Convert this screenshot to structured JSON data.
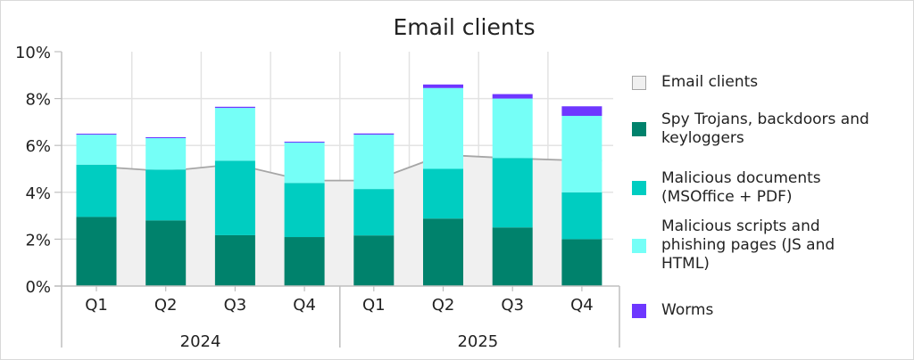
{
  "chart_data": {
    "type": "bar",
    "stacked": true,
    "title": "Email clients",
    "xlabel": "",
    "ylabel": "",
    "ylim": [
      0,
      10
    ],
    "y_ticks": [
      "0%",
      "2%",
      "4%",
      "6%",
      "8%",
      "10%"
    ],
    "y_tick_values": [
      0,
      2,
      4,
      6,
      8,
      10
    ],
    "categories": [
      "Q1",
      "Q2",
      "Q3",
      "Q4",
      "Q1",
      "Q2",
      "Q3",
      "Q4"
    ],
    "groups": [
      {
        "label": "2024",
        "span": 4
      },
      {
        "label": "2025",
        "span": 4
      }
    ],
    "grid": true,
    "legend_position": "right",
    "area_series": {
      "name": "Email clients",
      "color": "#f0f0f0",
      "line_color": "#a6a6a6",
      "values": [
        5.1,
        4.9,
        5.2,
        4.5,
        4.5,
        5.6,
        5.45,
        5.35
      ]
    },
    "series": [
      {
        "name": "Spy Trojans, backdoors and keyloggers",
        "color": "#00826c",
        "values": [
          2.95,
          2.8,
          2.17,
          2.09,
          2.16,
          2.88,
          2.5,
          2.0
        ]
      },
      {
        "name": "Malicious documents (MSOffice + PDF)",
        "color": "#00cdc1",
        "values": [
          2.23,
          2.17,
          3.18,
          2.31,
          1.98,
          2.12,
          2.96,
          2.0
        ]
      },
      {
        "name": "Malicious scripts and phishing pages (JS and HTML)",
        "color": "#75fff7",
        "values": [
          1.28,
          1.34,
          2.25,
          1.72,
          2.32,
          3.45,
          2.54,
          3.26
        ]
      },
      {
        "name": "Worms",
        "color": "#6e37ff",
        "values": [
          0.04,
          0.04,
          0.05,
          0.04,
          0.05,
          0.15,
          0.19,
          0.41
        ]
      }
    ]
  }
}
